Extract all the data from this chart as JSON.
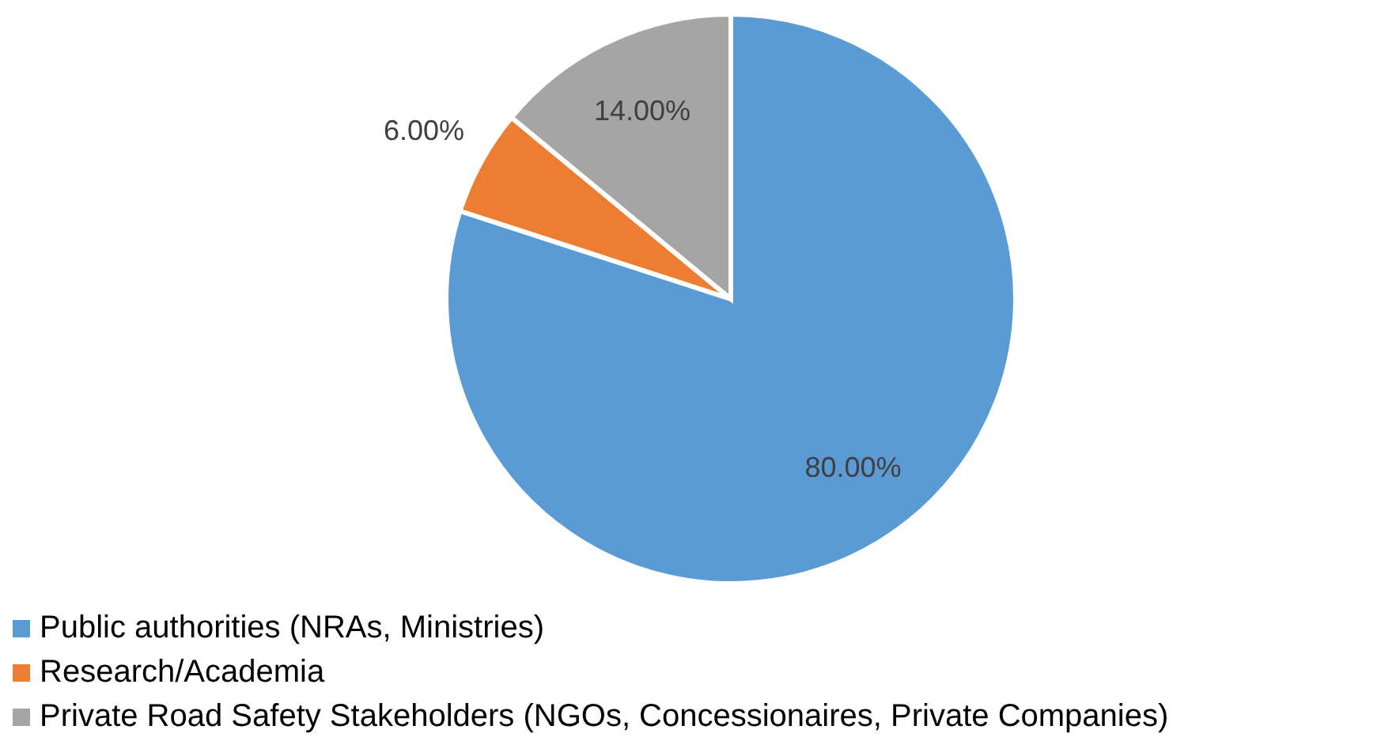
{
  "chart_data": {
    "type": "pie",
    "categories": [
      "Public authorities (NRAs, Ministries)",
      "Research/Academia",
      "Private Road Safety Stakeholders (NGOs, Concessionaires, Private Companies)"
    ],
    "values": [
      80,
      6,
      14
    ],
    "colors": [
      "#5b9bd5",
      "#ed7d31",
      "#a5a5a5"
    ],
    "value_labels": [
      "80.00%",
      "6.00%",
      "14.00%"
    ],
    "legend": "bottom left"
  }
}
